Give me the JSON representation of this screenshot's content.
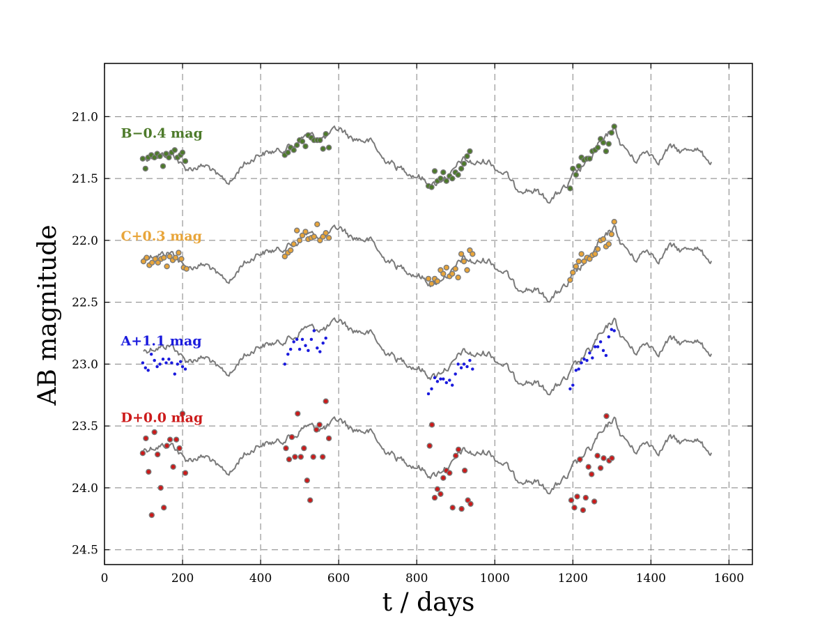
{
  "chart_data": {
    "type": "scatter",
    "title": "",
    "xlabel": "t / days",
    "ylabel": "AB magnitude",
    "xlim": [
      0,
      1660
    ],
    "ylim": [
      24.62,
      20.57
    ],
    "y_inverted": true,
    "grid": true,
    "x_ticks": [
      "0",
      "200",
      "400",
      "600",
      "800",
      "1000",
      "1200",
      "1400",
      "1600"
    ],
    "y_ticks": [
      "21.0",
      "21.5",
      "22.0",
      "22.5",
      "23.0",
      "23.5",
      "24.0",
      "24.5"
    ],
    "model_curve_color": "#7a7a7a",
    "series": [
      {
        "name": "B−0.4 mag",
        "color": "#4d7a2a",
        "marker_edge": "#7a7a7a",
        "marker_size": 3.5,
        "label_pos": [
          42,
          21.13
        ],
        "curve_offset": 0.0,
        "points": [
          [
            98,
            21.34
          ],
          [
            105,
            21.42
          ],
          [
            112,
            21.33
          ],
          [
            120,
            21.31
          ],
          [
            128,
            21.33
          ],
          [
            135,
            21.3
          ],
          [
            142,
            21.32
          ],
          [
            150,
            21.4
          ],
          [
            158,
            21.3
          ],
          [
            165,
            21.33
          ],
          [
            172,
            21.29
          ],
          [
            180,
            21.27
          ],
          [
            187,
            21.33
          ],
          [
            195,
            21.31
          ],
          [
            200,
            21.29
          ],
          [
            207,
            21.36
          ],
          [
            462,
            21.31
          ],
          [
            470,
            21.29
          ],
          [
            477,
            21.25
          ],
          [
            485,
            21.27
          ],
          [
            493,
            21.23
          ],
          [
            500,
            21.19
          ],
          [
            507,
            21.2
          ],
          [
            515,
            21.24
          ],
          [
            522,
            21.15
          ],
          [
            530,
            21.17
          ],
          [
            537,
            21.19
          ],
          [
            545,
            21.19
          ],
          [
            552,
            21.19
          ],
          [
            560,
            21.26
          ],
          [
            567,
            21.14
          ],
          [
            575,
            21.25
          ],
          [
            830,
            21.56
          ],
          [
            838,
            21.57
          ],
          [
            846,
            21.44
          ],
          [
            853,
            21.52
          ],
          [
            861,
            21.5
          ],
          [
            868,
            21.45
          ],
          [
            876,
            21.52
          ],
          [
            884,
            21.48
          ],
          [
            891,
            21.5
          ],
          [
            899,
            21.45
          ],
          [
            906,
            21.47
          ],
          [
            914,
            21.42
          ],
          [
            921,
            21.38
          ],
          [
            929,
            21.32
          ],
          [
            936,
            21.28
          ],
          [
            1193,
            21.58
          ],
          [
            1200,
            21.42
          ],
          [
            1208,
            21.47
          ],
          [
            1215,
            21.4
          ],
          [
            1222,
            21.33
          ],
          [
            1229,
            21.35
          ],
          [
            1236,
            21.34
          ],
          [
            1243,
            21.34
          ],
          [
            1250,
            21.28
          ],
          [
            1257,
            21.27
          ],
          [
            1264,
            21.25
          ],
          [
            1271,
            21.18
          ],
          [
            1278,
            21.21
          ],
          [
            1285,
            21.28
          ],
          [
            1292,
            21.22
          ],
          [
            1299,
            21.13
          ],
          [
            1306,
            21.08
          ]
        ]
      },
      {
        "name": "C+0.3 mag",
        "color": "#e8a53a",
        "marker_edge": "#7a7a7a",
        "marker_size": 3.5,
        "label_pos": [
          42,
          21.96
        ],
        "curve_offset": 0.8,
        "points": [
          [
            100,
            22.17
          ],
          [
            108,
            22.14
          ],
          [
            115,
            22.2
          ],
          [
            122,
            22.18
          ],
          [
            130,
            22.15
          ],
          [
            137,
            22.18
          ],
          [
            145,
            22.15
          ],
          [
            152,
            22.14
          ],
          [
            160,
            22.21
          ],
          [
            167,
            22.13
          ],
          [
            175,
            22.16
          ],
          [
            182,
            22.14
          ],
          [
            190,
            22.1
          ],
          [
            197,
            22.15
          ],
          [
            203,
            22.22
          ],
          [
            210,
            22.23
          ],
          [
            462,
            22.13
          ],
          [
            470,
            22.1
          ],
          [
            477,
            22.08
          ],
          [
            485,
            22.03
          ],
          [
            493,
            21.92
          ],
          [
            500,
            22.0
          ],
          [
            507,
            21.96
          ],
          [
            515,
            21.93
          ],
          [
            522,
            21.99
          ],
          [
            530,
            21.98
          ],
          [
            537,
            21.97
          ],
          [
            545,
            21.87
          ],
          [
            552,
            22.0
          ],
          [
            560,
            21.97
          ],
          [
            567,
            21.94
          ],
          [
            575,
            21.98
          ],
          [
            830,
            22.31
          ],
          [
            838,
            22.35
          ],
          [
            846,
            22.31
          ],
          [
            853,
            22.33
          ],
          [
            861,
            22.24
          ],
          [
            868,
            22.27
          ],
          [
            876,
            22.22
          ],
          [
            884,
            22.29
          ],
          [
            891,
            22.27
          ],
          [
            899,
            22.23
          ],
          [
            906,
            22.3
          ],
          [
            914,
            22.11
          ],
          [
            921,
            22.17
          ],
          [
            929,
            22.24
          ],
          [
            936,
            22.08
          ],
          [
            943,
            22.11
          ],
          [
            1193,
            22.32
          ],
          [
            1200,
            22.26
          ],
          [
            1208,
            22.21
          ],
          [
            1215,
            22.17
          ],
          [
            1222,
            22.11
          ],
          [
            1229,
            22.17
          ],
          [
            1236,
            22.14
          ],
          [
            1243,
            22.15
          ],
          [
            1250,
            22.12
          ],
          [
            1257,
            22.11
          ],
          [
            1264,
            22.07
          ],
          [
            1271,
            22.0
          ],
          [
            1278,
            21.99
          ],
          [
            1285,
            22.05
          ],
          [
            1292,
            22.03
          ],
          [
            1299,
            21.95
          ],
          [
            1306,
            21.85
          ]
        ]
      },
      {
        "name": "A+1.1 mag",
        "color": "#1a1add",
        "marker_edge": "#1a1add",
        "marker_size": 2.0,
        "label_pos": [
          42,
          22.81
        ],
        "curve_offset": 1.55,
        "points": [
          [
            98,
            22.99
          ],
          [
            105,
            23.03
          ],
          [
            112,
            23.05
          ],
          [
            120,
            22.92
          ],
          [
            128,
            22.97
          ],
          [
            135,
            23.02
          ],
          [
            142,
            23.0
          ],
          [
            150,
            22.96
          ],
          [
            158,
            22.99
          ],
          [
            165,
            22.96
          ],
          [
            172,
            22.99
          ],
          [
            180,
            23.08
          ],
          [
            187,
            23.0
          ],
          [
            195,
            22.98
          ],
          [
            200,
            23.02
          ],
          [
            207,
            23.04
          ],
          [
            462,
            23.0
          ],
          [
            470,
            22.92
          ],
          [
            477,
            22.88
          ],
          [
            485,
            22.82
          ],
          [
            493,
            22.8
          ],
          [
            500,
            22.88
          ],
          [
            507,
            22.8
          ],
          [
            515,
            22.85
          ],
          [
            522,
            22.89
          ],
          [
            530,
            22.8
          ],
          [
            537,
            22.73
          ],
          [
            545,
            22.87
          ],
          [
            552,
            22.9
          ],
          [
            560,
            22.83
          ],
          [
            567,
            22.79
          ],
          [
            830,
            23.24
          ],
          [
            838,
            23.2
          ],
          [
            846,
            23.11
          ],
          [
            853,
            23.14
          ],
          [
            861,
            23.12
          ],
          [
            868,
            23.12
          ],
          [
            876,
            23.15
          ],
          [
            884,
            23.13
          ],
          [
            891,
            23.17
          ],
          [
            899,
            23.08
          ],
          [
            906,
            23.0
          ],
          [
            914,
            23.03
          ],
          [
            921,
            23.0
          ],
          [
            929,
            23.02
          ],
          [
            936,
            22.97
          ],
          [
            943,
            23.04
          ],
          [
            1193,
            23.2
          ],
          [
            1200,
            23.17
          ],
          [
            1208,
            23.05
          ],
          [
            1215,
            23.04
          ],
          [
            1222,
            22.99
          ],
          [
            1229,
            22.96
          ],
          [
            1236,
            22.97
          ],
          [
            1243,
            22.91
          ],
          [
            1250,
            22.95
          ],
          [
            1257,
            22.86
          ],
          [
            1264,
            22.86
          ],
          [
            1271,
            22.82
          ],
          [
            1278,
            22.89
          ],
          [
            1285,
            22.93
          ],
          [
            1292,
            22.78
          ],
          [
            1299,
            22.72
          ],
          [
            1306,
            22.73
          ]
        ]
      },
      {
        "name": "D+0.0 mag",
        "color": "#cc1a1a",
        "marker_edge": "#7a7a7a",
        "marker_size": 3.5,
        "label_pos": [
          42,
          23.43
        ],
        "curve_offset": 2.35,
        "points": [
          [
            98,
            23.72
          ],
          [
            106,
            23.6
          ],
          [
            113,
            23.87
          ],
          [
            121,
            24.22
          ],
          [
            128,
            23.55
          ],
          [
            136,
            23.73
          ],
          [
            144,
            24.0
          ],
          [
            152,
            24.16
          ],
          [
            160,
            23.66
          ],
          [
            168,
            23.61
          ],
          [
            176,
            23.83
          ],
          [
            184,
            23.61
          ],
          [
            192,
            23.68
          ],
          [
            200,
            23.4
          ],
          [
            207,
            23.88
          ],
          [
            465,
            23.68
          ],
          [
            473,
            23.77
          ],
          [
            480,
            23.59
          ],
          [
            488,
            23.75
          ],
          [
            495,
            23.4
          ],
          [
            503,
            23.75
          ],
          [
            511,
            23.68
          ],
          [
            519,
            23.94
          ],
          [
            527,
            24.1
          ],
          [
            535,
            23.75
          ],
          [
            543,
            23.53
          ],
          [
            551,
            23.49
          ],
          [
            559,
            23.75
          ],
          [
            567,
            23.3
          ],
          [
            575,
            23.6
          ],
          [
            833,
            23.66
          ],
          [
            839,
            23.49
          ],
          [
            846,
            24.08
          ],
          [
            853,
            24.01
          ],
          [
            861,
            24.05
          ],
          [
            868,
            23.92
          ],
          [
            876,
            23.86
          ],
          [
            884,
            23.88
          ],
          [
            892,
            24.16
          ],
          [
            900,
            23.74
          ],
          [
            907,
            23.69
          ],
          [
            915,
            24.17
          ],
          [
            923,
            23.86
          ],
          [
            931,
            24.1
          ],
          [
            938,
            24.13
          ],
          [
            1196,
            24.1
          ],
          [
            1204,
            24.16
          ],
          [
            1211,
            24.07
          ],
          [
            1218,
            23.77
          ],
          [
            1226,
            24.18
          ],
          [
            1233,
            24.08
          ],
          [
            1240,
            23.83
          ],
          [
            1248,
            23.89
          ],
          [
            1255,
            24.11
          ],
          [
            1263,
            23.74
          ],
          [
            1271,
            23.84
          ],
          [
            1279,
            23.76
          ],
          [
            1286,
            23.42
          ],
          [
            1293,
            23.78
          ],
          [
            1300,
            23.76
          ]
        ]
      }
    ]
  }
}
